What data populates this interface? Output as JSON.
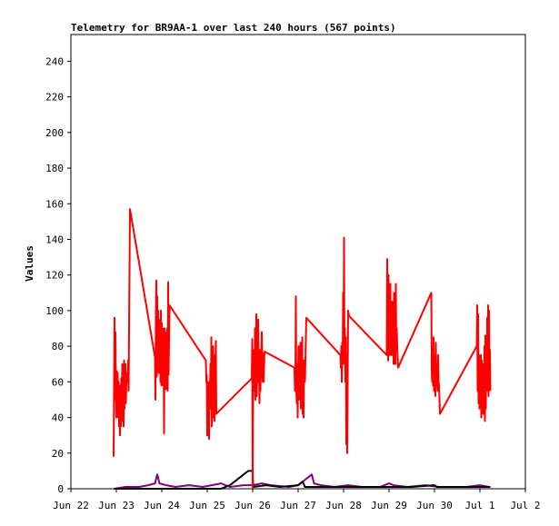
{
  "chart_data": {
    "type": "line",
    "title": "Telemetry for BR9AA-1 over last 240 hours (567 points)",
    "xlabel": "",
    "ylabel": "Values",
    "grid": false,
    "legend": "none",
    "x_domain_days": [
      0,
      10
    ],
    "ylim": [
      0,
      255
    ],
    "x_ticks": [
      {
        "day": 0,
        "label": "Jun 22"
      },
      {
        "day": 1,
        "label": "Jun 23"
      },
      {
        "day": 2,
        "label": "Jun 24"
      },
      {
        "day": 3,
        "label": "Jun 25"
      },
      {
        "day": 4,
        "label": "Jun 26"
      },
      {
        "day": 5,
        "label": "Jun 27"
      },
      {
        "day": 6,
        "label": "Jun 28"
      },
      {
        "day": 7,
        "label": "Jun 29"
      },
      {
        "day": 8,
        "label": "Jun 30"
      },
      {
        "day": 9,
        "label": "Jul 1"
      },
      {
        "day": 10,
        "label": "Jul 2"
      }
    ],
    "y_ticks": [
      0,
      20,
      40,
      60,
      80,
      100,
      120,
      140,
      160,
      180,
      200,
      220,
      240
    ],
    "series": [
      {
        "color": "#ff0000",
        "points": [
          [
            0.94,
            18
          ],
          [
            0.95,
            58
          ],
          [
            0.96,
            96
          ],
          [
            0.97,
            50
          ],
          [
            0.98,
            88
          ],
          [
            0.99,
            55
          ],
          [
            1.0,
            40
          ],
          [
            1.01,
            66
          ],
          [
            1.02,
            45
          ],
          [
            1.03,
            65
          ],
          [
            1.04,
            40
          ],
          [
            1.05,
            60
          ],
          [
            1.06,
            35
          ],
          [
            1.07,
            50
          ],
          [
            1.08,
            30
          ],
          [
            1.09,
            58
          ],
          [
            1.1,
            35
          ],
          [
            1.11,
            62
          ],
          [
            1.12,
            45
          ],
          [
            1.13,
            70
          ],
          [
            1.14,
            38
          ],
          [
            1.15,
            68
          ],
          [
            1.16,
            35
          ],
          [
            1.17,
            72
          ],
          [
            1.18,
            45
          ],
          [
            1.2,
            70
          ],
          [
            1.21,
            48
          ],
          [
            1.22,
            58
          ],
          [
            1.24,
            65
          ],
          [
            1.25,
            60
          ],
          [
            1.26,
            72
          ],
          [
            1.27,
            55
          ],
          [
            1.3,
            157
          ],
          [
            1.85,
            74
          ],
          [
            1.86,
            50
          ],
          [
            1.87,
            95
          ],
          [
            1.88,
            117
          ],
          [
            1.89,
            63
          ],
          [
            1.9,
            108
          ],
          [
            1.91,
            70
          ],
          [
            1.92,
            100
          ],
          [
            1.93,
            65
          ],
          [
            1.94,
            90
          ],
          [
            1.95,
            70
          ],
          [
            1.96,
            95
          ],
          [
            1.97,
            60
          ],
          [
            1.98,
            100
          ],
          [
            1.99,
            58
          ],
          [
            2.0,
            93
          ],
          [
            2.01,
            60
          ],
          [
            2.02,
            90
          ],
          [
            2.03,
            58
          ],
          [
            2.04,
            80
          ],
          [
            2.05,
            31
          ],
          [
            2.06,
            90
          ],
          [
            2.07,
            62
          ],
          [
            2.08,
            88
          ],
          [
            2.09,
            56
          ],
          [
            2.1,
            82
          ],
          [
            2.11,
            60
          ],
          [
            2.12,
            90
          ],
          [
            2.13,
            55
          ],
          [
            2.14,
            116
          ],
          [
            2.15,
            64
          ],
          [
            2.17,
            103
          ],
          [
            2.97,
            72
          ],
          [
            2.98,
            60
          ],
          [
            2.99,
            64
          ],
          [
            3.0,
            30
          ],
          [
            3.01,
            60
          ],
          [
            3.02,
            45
          ],
          [
            3.03,
            55
          ],
          [
            3.04,
            28
          ],
          [
            3.05,
            60
          ],
          [
            3.06,
            50
          ],
          [
            3.07,
            70
          ],
          [
            3.08,
            45
          ],
          [
            3.09,
            85
          ],
          [
            3.1,
            35
          ],
          [
            3.11,
            60
          ],
          [
            3.12,
            48
          ],
          [
            3.13,
            80
          ],
          [
            3.14,
            40
          ],
          [
            3.15,
            55
          ],
          [
            3.16,
            38
          ],
          [
            3.17,
            75
          ],
          [
            3.18,
            62
          ],
          [
            3.19,
            83
          ],
          [
            3.2,
            42
          ],
          [
            3.98,
            62
          ],
          [
            3.99,
            84
          ],
          [
            4.0,
            0
          ],
          [
            4.01,
            60
          ],
          [
            4.02,
            65
          ],
          [
            4.03,
            78
          ],
          [
            4.04,
            55
          ],
          [
            4.05,
            90
          ],
          [
            4.06,
            50
          ],
          [
            4.07,
            60
          ],
          [
            4.08,
            98
          ],
          [
            4.09,
            52
          ],
          [
            4.1,
            75
          ],
          [
            4.11,
            60
          ],
          [
            4.12,
            95
          ],
          [
            4.13,
            65
          ],
          [
            4.14,
            70
          ],
          [
            4.15,
            48
          ],
          [
            4.16,
            78
          ],
          [
            4.17,
            55
          ],
          [
            4.2,
            88
          ],
          [
            4.22,
            60
          ],
          [
            4.23,
            76
          ],
          [
            4.24,
            60
          ],
          [
            4.26,
            77
          ],
          [
            4.92,
            68
          ],
          [
            4.93,
            55
          ],
          [
            4.94,
            60
          ],
          [
            4.95,
            108
          ],
          [
            4.96,
            55
          ],
          [
            4.97,
            48
          ],
          [
            4.98,
            70
          ],
          [
            4.99,
            40
          ],
          [
            5.0,
            62
          ],
          [
            5.01,
            80
          ],
          [
            5.02,
            50
          ],
          [
            5.03,
            72
          ],
          [
            5.04,
            55
          ],
          [
            5.05,
            82
          ],
          [
            5.06,
            45
          ],
          [
            5.07,
            75
          ],
          [
            5.08,
            58
          ],
          [
            5.09,
            85
          ],
          [
            5.1,
            42
          ],
          [
            5.11,
            70
          ],
          [
            5.12,
            40
          ],
          [
            5.13,
            72
          ],
          [
            5.15,
            60
          ],
          [
            5.18,
            96
          ],
          [
            5.93,
            75
          ],
          [
            5.94,
            68
          ],
          [
            5.95,
            80
          ],
          [
            5.96,
            60
          ],
          [
            5.97,
            82
          ],
          [
            5.98,
            70
          ],
          [
            5.99,
            110
          ],
          [
            6.0,
            75
          ],
          [
            6.01,
            141
          ],
          [
            6.02,
            70
          ],
          [
            6.03,
            90
          ],
          [
            6.04,
            60
          ],
          [
            6.05,
            85
          ],
          [
            6.06,
            25
          ],
          [
            6.07,
            75
          ],
          [
            6.08,
            20
          ],
          [
            6.09,
            60
          ],
          [
            6.1,
            100
          ],
          [
            6.12,
            97
          ],
          [
            6.95,
            75
          ],
          [
            6.96,
            129
          ],
          [
            6.97,
            85
          ],
          [
            6.98,
            72
          ],
          [
            6.99,
            120
          ],
          [
            7.0,
            80
          ],
          [
            7.01,
            110
          ],
          [
            7.02,
            75
          ],
          [
            7.03,
            115
          ],
          [
            7.04,
            80
          ],
          [
            7.05,
            100
          ],
          [
            7.06,
            75
          ],
          [
            7.07,
            105
          ],
          [
            7.08,
            80
          ],
          [
            7.09,
            100
          ],
          [
            7.1,
            70
          ],
          [
            7.11,
            110
          ],
          [
            7.12,
            75
          ],
          [
            7.13,
            95
          ],
          [
            7.14,
            70
          ],
          [
            7.15,
            115
          ],
          [
            7.16,
            78
          ],
          [
            7.17,
            90
          ],
          [
            7.18,
            80
          ],
          [
            7.2,
            68
          ],
          [
            7.93,
            110
          ],
          [
            7.94,
            65
          ],
          [
            7.95,
            60
          ],
          [
            7.96,
            62
          ],
          [
            7.97,
            58
          ],
          [
            7.98,
            85
          ],
          [
            7.99,
            55
          ],
          [
            8.0,
            60
          ],
          [
            8.01,
            75
          ],
          [
            8.02,
            52
          ],
          [
            8.03,
            82
          ],
          [
            8.04,
            58
          ],
          [
            8.05,
            70
          ],
          [
            8.06,
            60
          ],
          [
            8.07,
            55
          ],
          [
            8.08,
            75
          ],
          [
            8.09,
            60
          ],
          [
            8.1,
            58
          ],
          [
            8.12,
            42
          ],
          [
            8.93,
            80
          ],
          [
            8.94,
            103
          ],
          [
            8.95,
            55
          ],
          [
            8.96,
            98
          ],
          [
            8.97,
            48
          ],
          [
            8.98,
            75
          ],
          [
            8.99,
            45
          ],
          [
            9.0,
            70
          ],
          [
            9.01,
            55
          ],
          [
            9.02,
            75
          ],
          [
            9.03,
            40
          ],
          [
            9.04,
            72
          ],
          [
            9.05,
            48
          ],
          [
            9.06,
            65
          ],
          [
            9.07,
            42
          ],
          [
            9.08,
            70
          ],
          [
            9.09,
            55
          ],
          [
            9.1,
            80
          ],
          [
            9.11,
            38
          ],
          [
            9.12,
            86
          ],
          [
            9.13,
            45
          ],
          [
            9.14,
            80
          ],
          [
            9.15,
            60
          ],
          [
            9.16,
            96
          ],
          [
            9.17,
            55
          ],
          [
            9.18,
            103
          ],
          [
            9.19,
            52
          ],
          [
            9.2,
            100
          ],
          [
            9.21,
            60
          ],
          [
            9.22,
            78
          ],
          [
            9.23,
            55
          ]
        ]
      },
      {
        "color": "#800080",
        "points": [
          [
            0.95,
            0
          ],
          [
            1.2,
            1
          ],
          [
            1.5,
            1
          ],
          [
            1.7,
            2
          ],
          [
            1.85,
            3
          ],
          [
            1.9,
            8
          ],
          [
            1.95,
            3
          ],
          [
            2.1,
            2
          ],
          [
            2.3,
            1
          ],
          [
            2.6,
            2
          ],
          [
            2.9,
            1
          ],
          [
            3.1,
            2
          ],
          [
            3.3,
            3
          ],
          [
            3.5,
            1
          ],
          [
            3.8,
            2
          ],
          [
            4.0,
            2
          ],
          [
            4.2,
            3
          ],
          [
            4.4,
            2
          ],
          [
            4.8,
            1
          ],
          [
            5.0,
            2
          ],
          [
            5.3,
            8
          ],
          [
            5.35,
            3
          ],
          [
            5.5,
            2
          ],
          [
            5.8,
            1
          ],
          [
            6.1,
            2
          ],
          [
            6.4,
            1
          ],
          [
            6.8,
            1
          ],
          [
            7.0,
            3
          ],
          [
            7.1,
            2
          ],
          [
            7.4,
            1
          ],
          [
            7.8,
            2
          ],
          [
            8.1,
            1
          ],
          [
            8.4,
            1
          ],
          [
            8.7,
            1
          ],
          [
            9.0,
            2
          ],
          [
            9.2,
            1
          ]
        ]
      },
      {
        "color": "#000000",
        "points": [
          [
            0.95,
            0
          ],
          [
            1.2,
            0
          ],
          [
            1.5,
            0
          ],
          [
            2.0,
            0
          ],
          [
            2.5,
            0
          ],
          [
            3.0,
            0
          ],
          [
            3.3,
            0
          ],
          [
            3.5,
            2
          ],
          [
            3.9,
            10
          ],
          [
            4.0,
            10
          ],
          [
            4.01,
            1
          ],
          [
            4.3,
            2
          ],
          [
            4.6,
            1
          ],
          [
            5.0,
            2
          ],
          [
            5.1,
            4
          ],
          [
            5.15,
            1
          ],
          [
            5.5,
            1
          ],
          [
            6.0,
            1
          ],
          [
            6.5,
            1
          ],
          [
            7.0,
            1
          ],
          [
            7.5,
            1
          ],
          [
            8.0,
            2
          ],
          [
            8.05,
            1
          ],
          [
            8.5,
            1
          ],
          [
            9.0,
            1
          ],
          [
            9.23,
            1
          ]
        ]
      }
    ]
  }
}
